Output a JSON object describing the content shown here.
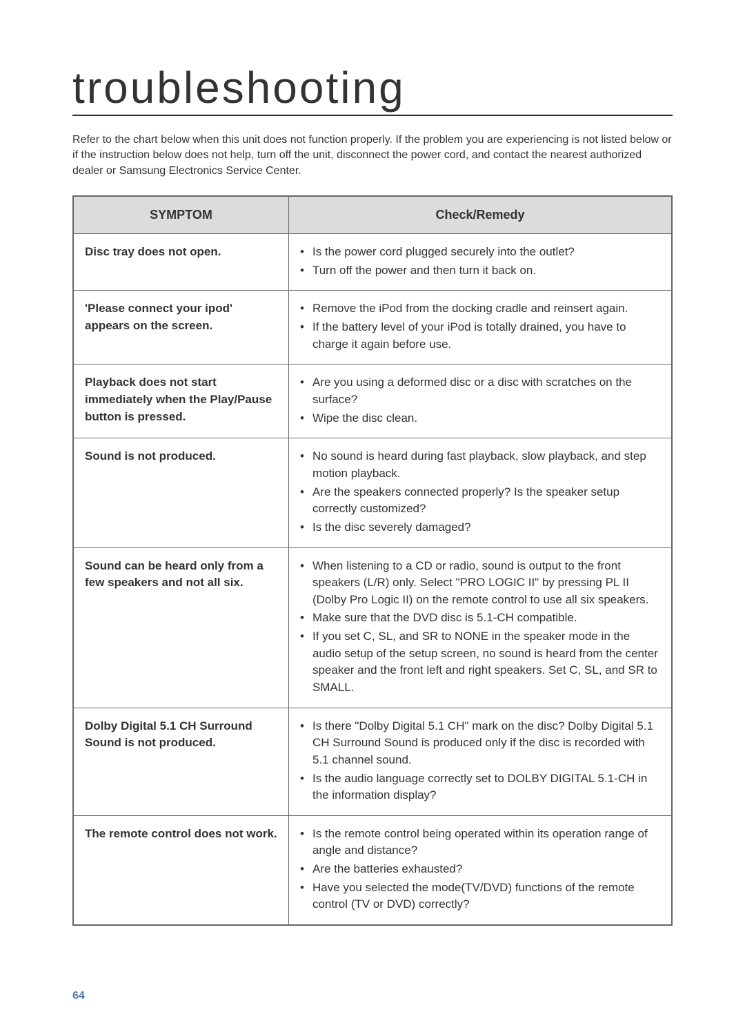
{
  "title": "troubleshooting",
  "intro": "Refer to the chart below when this unit does not function properly. If the problem you are experiencing is not listed below or if the instruction below does not help, turn off the unit, disconnect the power cord, and contact the nearest authorized dealer or Samsung Electronics Service Center.",
  "headers": {
    "symptom": "SYMPTOM",
    "remedy": "Check/Remedy"
  },
  "rows": [
    {
      "symptom": "Disc tray does not open.",
      "remedies": [
        "Is the power cord plugged securely into the outlet?",
        "Turn off the power and then turn it back on."
      ]
    },
    {
      "symptom": "'Please connect your ipod' appears on the screen.",
      "remedies": [
        "Remove the iPod from the docking cradle and reinsert again.",
        "If the battery level of your iPod is totally drained, you have to charge it again before use."
      ]
    },
    {
      "symptom": "Playback does not start immediately when the Play/Pause button is pressed.",
      "remedies": [
        "Are you using a deformed disc or a disc with scratches on the surface?",
        "Wipe the disc clean."
      ]
    },
    {
      "symptom": "Sound is not produced.",
      "remedies": [
        "No sound is heard during fast playback, slow playback, and step motion playback.",
        "Are the speakers connected properly? Is the speaker setup correctly customized?",
        "Is the disc severely damaged?"
      ]
    },
    {
      "symptom": "Sound can be heard only from a few speakers and not all six.",
      "remedies": [
        "When listening to a CD or radio, sound is output to the front speakers (L/R) only. Select \"PRO LOGIC II\" by pressing  PL II (Dolby Pro Logic II) on the remote control to use all six speakers.",
        "Make sure that the DVD disc is 5.1-CH compatible.",
        "If you set C, SL, and SR to NONE in the speaker mode in the audio setup of the setup screen, no sound is heard from the center speaker and the front left and right speakers. Set C, SL, and SR to SMALL."
      ]
    },
    {
      "symptom": "Dolby Digital 5.1 CH Surround Sound is not produced.",
      "remedies": [
        "Is there \"Dolby Digital 5.1 CH\" mark on the disc? Dolby Digital 5.1 CH Surround Sound is produced only if the disc is recorded with 5.1 channel sound.",
        "Is the audio language correctly set to DOLBY DIGITAL 5.1-CH in the information display?"
      ]
    },
    {
      "symptom": "The remote control does not work.",
      "remedies": [
        "Is the remote control being operated within its operation range of angle and distance?",
        "Are the batteries exhausted?",
        "Have you selected the mode(TV/DVD) functions of the remote control (TV or DVD) correctly?"
      ]
    }
  ],
  "page_number": "64"
}
